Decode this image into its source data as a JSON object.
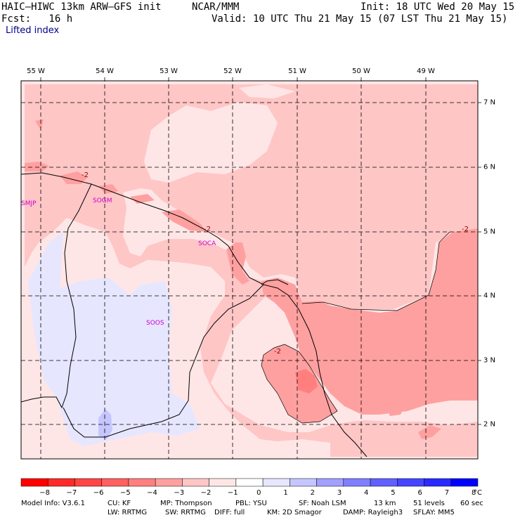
{
  "header": {
    "model": "HAIC–HIWC 13km ARW–GFS init",
    "org": "NCAR/MMM",
    "init": "Init: 18 UTC Wed 20 May 15",
    "fcst": "Fcst:   16 h",
    "valid": "Valid: 10 UTC Thu 21 May 15 (07 LST Thu 21 May 15)",
    "field": "Lifted index"
  },
  "map": {
    "lon_labels": [
      "55 W",
      "54 W",
      "53 W",
      "52 W",
      "51 W",
      "50 W",
      "49 W"
    ],
    "lat_labels": [
      "7 N",
      "6 N",
      "5 N",
      "4 N",
      "3 N",
      "2 N"
    ],
    "stations": [
      "SMJP",
      "SOGM",
      "SOCA",
      "SOOS"
    ],
    "contour_labels": [
      "-2",
      "-2",
      "-2",
      "-2"
    ]
  },
  "colorbar": {
    "values": [
      "−8",
      "−7",
      "−6",
      "−5",
      "−4",
      "−3",
      "−2",
      "−1",
      "0",
      "1",
      "2",
      "3",
      "4",
      "5",
      "6",
      "7",
      "8"
    ],
    "unit": "°C",
    "colors": [
      "#ff0000",
      "#ff2a2a",
      "#ff4545",
      "#ff6060",
      "#ff7f7f",
      "#ffa0a0",
      "#ffc6c6",
      "#ffe6e6",
      "#ffffff",
      "#e6e6ff",
      "#c6c6ff",
      "#a0a0ff",
      "#7f7fff",
      "#6060ff",
      "#4545ff",
      "#2a2aff",
      "#0000ff"
    ]
  },
  "footer": {
    "line1": [
      "Model Info: V3.6.1",
      "CU: KF",
      "MP: Thompson",
      "PBL: YSU",
      "SF: Noah LSM",
      "13 km",
      "51 levels",
      "60 sec"
    ],
    "line2": [
      "LW: RRTMG",
      "SW: RRTMG",
      "DIFF: full",
      "KM: 2D Smagor",
      "DAMP: Rayleigh3",
      "SFLAY: MM5"
    ]
  }
}
